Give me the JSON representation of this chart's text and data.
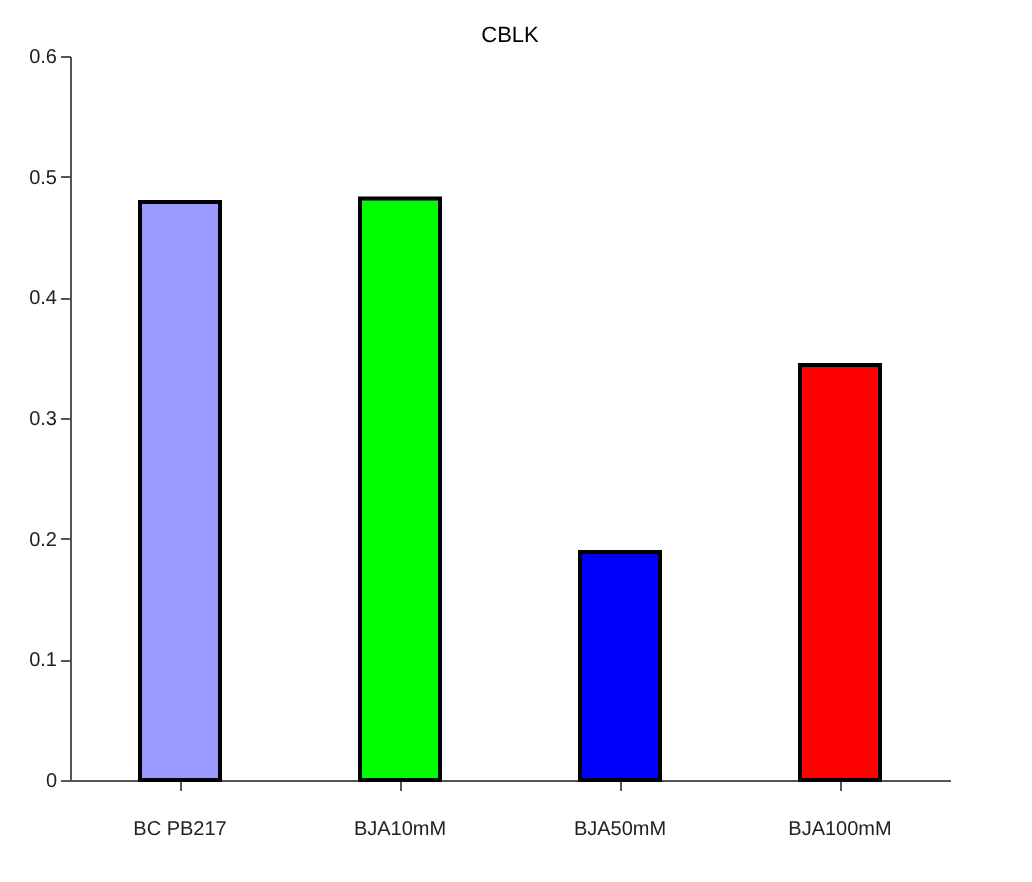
{
  "chart_data": {
    "type": "bar",
    "title": "CBLK",
    "categories": [
      "BC PB217",
      "BJA10mM",
      "BJA50mM",
      "BJA100mM"
    ],
    "values": [
      0.479,
      0.482,
      0.189,
      0.344
    ],
    "colors": [
      "#9999ff",
      "#00ff00",
      "#0000ff",
      "#ff0000"
    ],
    "ylim": [
      0,
      0.6
    ],
    "yticks": [
      0,
      0.1,
      0.2,
      0.3,
      0.4,
      0.5,
      0.6
    ],
    "grid": false
  }
}
